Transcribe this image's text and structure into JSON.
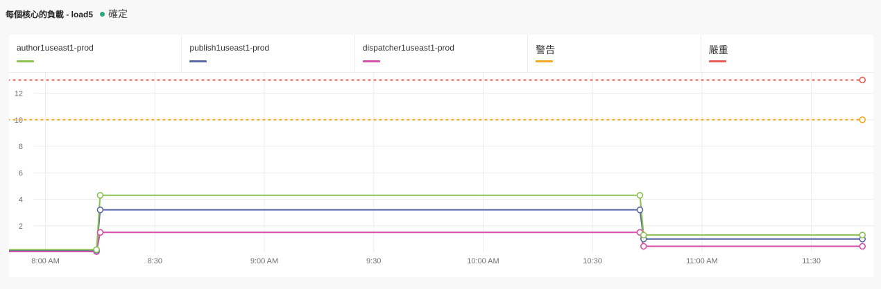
{
  "header": {
    "title": "每個核心的負載 - load5",
    "status_label": "確定",
    "status_color": "#2da87d"
  },
  "chart_data": {
    "type": "line",
    "title": "每個核心的負載 - load5",
    "xlabel": "",
    "ylabel": "",
    "x_ticks": [
      "8:00 AM",
      "8:30",
      "9:00 AM",
      "9:30",
      "10:00 AM",
      "10:30",
      "11:00 AM",
      "11:30"
    ],
    "x_tick_minutes": [
      480,
      510,
      540,
      570,
      600,
      630,
      660,
      690
    ],
    "xlim_minutes": [
      470,
      707
    ],
    "y_ticks": [
      2,
      4,
      6,
      8,
      10,
      12
    ],
    "ylim": [
      0,
      13.6
    ],
    "grid": true,
    "legend_position": "top",
    "series": [
      {
        "name": "author1useast1-prod",
        "color": "#8cc152",
        "dashed": false,
        "x": [
          "7:48",
          "8:14",
          "8:15",
          "10:43",
          "10:44",
          "11:44"
        ],
        "y": [
          0.2,
          0.2,
          4.3,
          4.3,
          1.3,
          1.3
        ]
      },
      {
        "name": "publish1useast1-prod",
        "color": "#5b6aa7",
        "dashed": false,
        "x": [
          "7:48",
          "8:14",
          "8:15",
          "10:43",
          "10:44",
          "11:44"
        ],
        "y": [
          0.15,
          0.15,
          3.2,
          3.2,
          1.0,
          1.0
        ]
      },
      {
        "name": "dispatcher1useast1-prod",
        "color": "#d550a8",
        "dashed": false,
        "x": [
          "7:48",
          "8:14",
          "8:15",
          "10:43",
          "10:44",
          "11:44"
        ],
        "y": [
          0.05,
          0.05,
          1.5,
          1.5,
          0.45,
          0.45
        ]
      },
      {
        "name": "警告",
        "color": "#f5a623",
        "dashed": true,
        "x": [
          "7:48",
          "11:44"
        ],
        "y": [
          10,
          10
        ]
      },
      {
        "name": "嚴重",
        "color": "#ea5b57",
        "dashed": true,
        "x": [
          "7:48",
          "11:44"
        ],
        "y": [
          13,
          13
        ]
      }
    ]
  }
}
